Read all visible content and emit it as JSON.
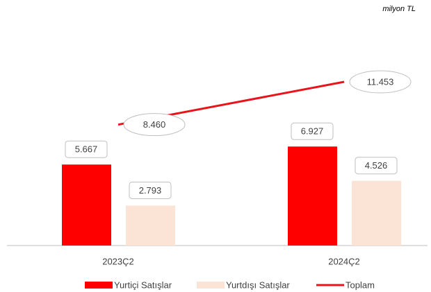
{
  "chart_data": {
    "type": "bar",
    "subtitle": "milyon TL",
    "categories": [
      "2023Ç2",
      "2024Ç2"
    ],
    "series": [
      {
        "name": "Yurtiçi Satışlar",
        "type": "bar",
        "color": "#ff0000",
        "values": [
          5667,
          6927
        ],
        "value_labels": [
          "5.667",
          "6.927"
        ]
      },
      {
        "name": "Yurtdışı Satışlar",
        "type": "bar",
        "color": "#fbe3d6",
        "values": [
          2793,
          4526
        ],
        "value_labels": [
          "2.793",
          "4.526"
        ]
      },
      {
        "name": "Toplam",
        "type": "line",
        "color": "#e8141b",
        "values": [
          8460,
          11453
        ],
        "value_labels": [
          "8.460",
          "11.453"
        ]
      }
    ]
  }
}
